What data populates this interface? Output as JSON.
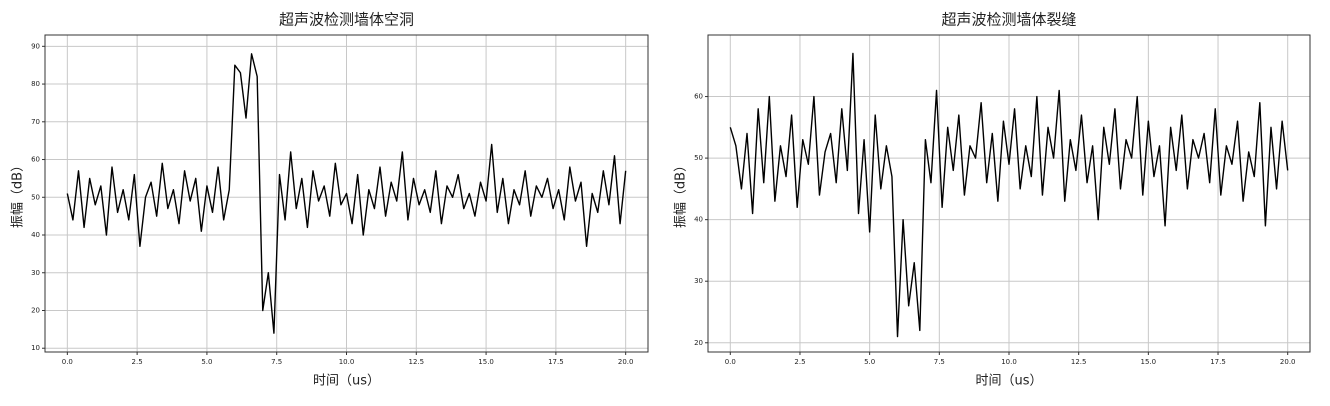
{
  "chart_data": [
    {
      "type": "line",
      "title": "超声波检测墙体空洞",
      "xlabel": "时间（us）",
      "ylabel": "振幅（dB）",
      "grid": true,
      "color": "#000000",
      "xlim": [
        -0.8,
        20.8
      ],
      "ylim": [
        9,
        93
      ],
      "xticks": [
        {
          "value": 0,
          "label": "0.0"
        },
        2.5,
        {
          "value": 5,
          "label": "5.0"
        },
        7.5,
        {
          "value": 10,
          "label": "10.0"
        },
        12.5,
        {
          "value": 15,
          "label": "15.0"
        },
        17.5,
        {
          "value": 20,
          "label": "20.0"
        }
      ],
      "yticks": [
        10,
        20,
        30,
        40,
        50,
        60,
        70,
        80,
        90
      ],
      "x": [
        0,
        0.2,
        0.4,
        0.6,
        0.8,
        1,
        1.2,
        1.4,
        1.6,
        1.8,
        2,
        2.2,
        2.4,
        2.6,
        2.8,
        3,
        3.2,
        3.4,
        3.6,
        3.8,
        4,
        4.2,
        4.4,
        4.6,
        4.8,
        5,
        5.2,
        5.4,
        5.6,
        5.8,
        6,
        6.2,
        6.4,
        6.6,
        6.8,
        7,
        7.2,
        7.4,
        7.6,
        7.8,
        8,
        8.2,
        8.4,
        8.6,
        8.8,
        9,
        9.2,
        9.4,
        9.6,
        9.8,
        10,
        10.2,
        10.4,
        10.6,
        10.8,
        11,
        11.2,
        11.4,
        11.6,
        11.8,
        12,
        12.2,
        12.4,
        12.6,
        12.8,
        13,
        13.2,
        13.4,
        13.6,
        13.8,
        14,
        14.2,
        14.4,
        14.6,
        14.8,
        15,
        15.2,
        15.4,
        15.6,
        15.8,
        16,
        16.2,
        16.4,
        16.6,
        16.8,
        17,
        17.2,
        17.4,
        17.6,
        17.8,
        18,
        18.2,
        18.4,
        18.6,
        18.8,
        19,
        19.2,
        19.4,
        19.6,
        19.8,
        20
      ],
      "values": [
        51,
        44,
        57,
        42,
        55,
        48,
        53,
        40,
        58,
        46,
        52,
        44,
        56,
        37,
        50,
        54,
        45,
        59,
        47,
        52,
        43,
        57,
        49,
        55,
        41,
        53,
        46,
        58,
        44,
        52,
        85,
        83,
        71,
        88,
        82,
        20,
        30,
        14,
        56,
        44,
        62,
        47,
        55,
        42,
        57,
        49,
        53,
        45,
        59,
        48,
        51,
        43,
        56,
        40,
        52,
        47,
        58,
        45,
        54,
        49,
        62,
        44,
        55,
        48,
        52,
        46,
        57,
        43,
        53,
        50,
        56,
        47,
        51,
        45,
        54,
        49,
        64,
        46,
        55,
        43,
        52,
        48,
        57,
        45,
        53,
        50,
        55,
        47,
        52,
        44,
        58,
        49,
        54,
        37,
        51,
        46,
        57,
        48,
        61,
        43,
        57
      ]
    },
    {
      "type": "line",
      "title": "超声波检测墙体裂缝",
      "xlabel": "时间（us）",
      "ylabel": "振幅（dB）",
      "grid": true,
      "color": "#000000",
      "xlim": [
        -0.8,
        20.8
      ],
      "ylim": [
        18.5,
        70
      ],
      "xticks": [
        {
          "value": 0,
          "label": "0.0"
        },
        2.5,
        {
          "value": 5,
          "label": "5.0"
        },
        7.5,
        {
          "value": 10,
          "label": "10.0"
        },
        12.5,
        {
          "value": 15,
          "label": "15.0"
        },
        17.5,
        {
          "value": 20,
          "label": "20.0"
        }
      ],
      "yticks": [
        20,
        30,
        40,
        50,
        60
      ],
      "x": [
        0,
        0.2,
        0.4,
        0.6,
        0.8,
        1,
        1.2,
        1.4,
        1.6,
        1.8,
        2,
        2.2,
        2.4,
        2.6,
        2.8,
        3,
        3.2,
        3.4,
        3.6,
        3.8,
        4,
        4.2,
        4.4,
        4.6,
        4.8,
        5,
        5.2,
        5.4,
        5.6,
        5.8,
        6,
        6.2,
        6.4,
        6.6,
        6.8,
        7,
        7.2,
        7.4,
        7.6,
        7.8,
        8,
        8.2,
        8.4,
        8.6,
        8.8,
        9,
        9.2,
        9.4,
        9.6,
        9.8,
        10,
        10.2,
        10.4,
        10.6,
        10.8,
        11,
        11.2,
        11.4,
        11.6,
        11.8,
        12,
        12.2,
        12.4,
        12.6,
        12.8,
        13,
        13.2,
        13.4,
        13.6,
        13.8,
        14,
        14.2,
        14.4,
        14.6,
        14.8,
        15,
        15.2,
        15.4,
        15.6,
        15.8,
        16,
        16.2,
        16.4,
        16.6,
        16.8,
        17,
        17.2,
        17.4,
        17.6,
        17.8,
        18,
        18.2,
        18.4,
        18.6,
        18.8,
        19,
        19.2,
        19.4,
        19.6,
        19.8,
        20
      ],
      "values": [
        55,
        52,
        45,
        54,
        41,
        58,
        46,
        60,
        43,
        52,
        47,
        57,
        42,
        53,
        49,
        60,
        44,
        51,
        54,
        46,
        58,
        48,
        67,
        41,
        53,
        38,
        57,
        45,
        52,
        47,
        21,
        40,
        26,
        33,
        22,
        53,
        46,
        61,
        42,
        55,
        48,
        57,
        44,
        52,
        50,
        59,
        46,
        54,
        43,
        56,
        49,
        58,
        45,
        52,
        47,
        60,
        44,
        55,
        50,
        61,
        43,
        53,
        48,
        57,
        46,
        52,
        40,
        55,
        49,
        58,
        45,
        53,
        50,
        60,
        44,
        56,
        47,
        52,
        39,
        55,
        48,
        57,
        45,
        53,
        50,
        54,
        46,
        58,
        44,
        52,
        49,
        56,
        43,
        51,
        47,
        59,
        39,
        55,
        45,
        56,
        48
      ]
    }
  ]
}
